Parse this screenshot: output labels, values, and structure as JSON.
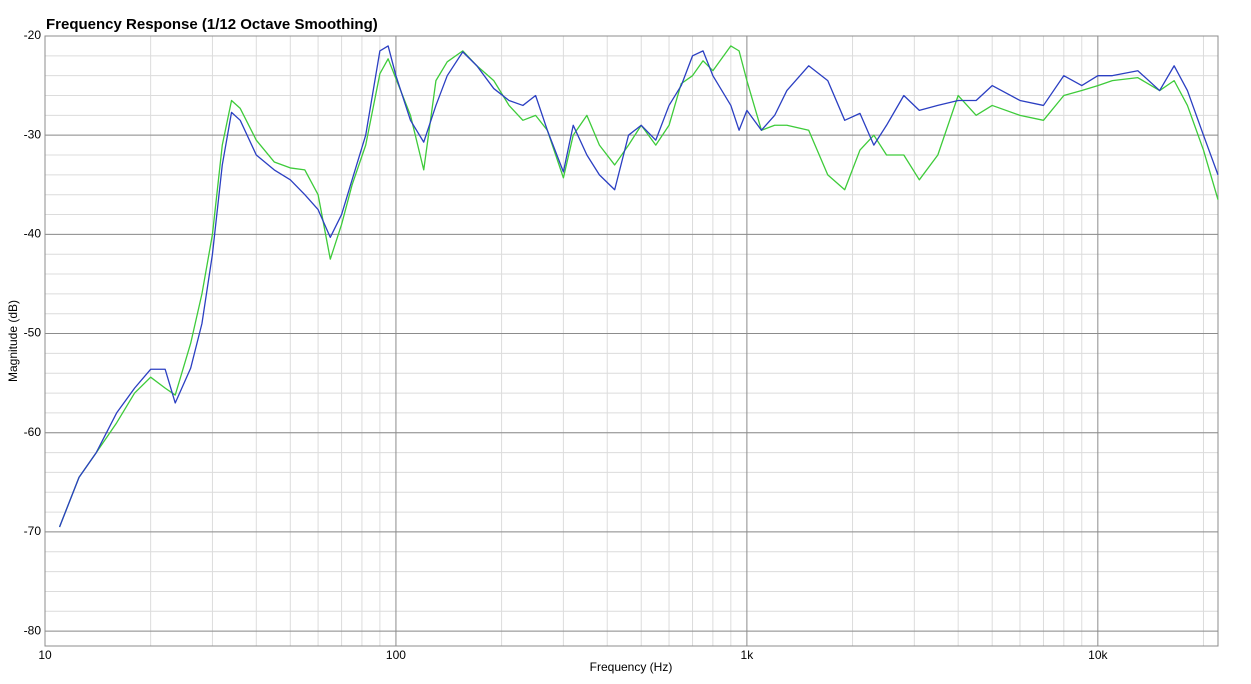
{
  "chart_data": {
    "type": "line",
    "title": "Frequency Response (1/12 Octave Smoothing)",
    "x_label": "Frequency (Hz)",
    "y_label": "Magnitude (dB)",
    "log_x": true,
    "grid": true,
    "minor_grid": true,
    "xlim": [
      10,
      22000
    ],
    "ylim": [
      -81.5,
      -20
    ],
    "xticks": [
      10,
      100,
      {
        "value": 1000,
        "label": "1k"
      },
      {
        "value": 10000,
        "label": "10k"
      }
    ],
    "yticks": [
      -20,
      -30,
      -40,
      -50,
      -60,
      -70,
      -80
    ],
    "x": [
      11,
      12.5,
      14,
      16,
      18,
      20,
      22,
      23.5,
      26,
      28,
      30,
      32,
      34,
      36,
      40,
      45,
      50,
      55,
      60,
      65,
      70,
      75,
      82,
      90,
      95,
      100,
      110,
      120,
      130,
      140,
      155,
      170,
      190,
      210,
      230,
      250,
      270,
      300,
      320,
      350,
      380,
      420,
      460,
      500,
      550,
      600,
      650,
      700,
      750,
      800,
      900,
      950,
      1000,
      1100,
      1200,
      1300,
      1500,
      1700,
      1900,
      2100,
      2300,
      2500,
      2800,
      3100,
      3500,
      4000,
      4500,
      5000,
      6000,
      7000,
      8000,
      9000,
      10000,
      11000,
      13000,
      15000,
      16500,
      18000,
      20000,
      22000
    ],
    "series": [
      {
        "color": "#2b3fc2",
        "values": [
          -69.5,
          -64.5,
          -62,
          -58,
          -55.5,
          -53.6,
          -53.6,
          -57,
          -53.5,
          -49,
          -42,
          -33,
          -27.7,
          -28.5,
          -32,
          -33.5,
          -34.5,
          -36,
          -37.5,
          -40.3,
          -38,
          -34.5,
          -30,
          -21.5,
          -21,
          -24,
          -28.5,
          -30.7,
          -27,
          -24,
          -21.6,
          -23,
          -25.3,
          -26.5,
          -27,
          -26,
          -29.5,
          -33.7,
          -29,
          -32,
          -34,
          -35.5,
          -30,
          -29,
          -30.5,
          -27,
          -25,
          -22,
          -21.5,
          -24,
          -27,
          -29.5,
          -27.5,
          -29.5,
          -28,
          -25.5,
          -23,
          -24.5,
          -28.5,
          -27.8,
          -31,
          -29,
          -26,
          -27.5,
          -27,
          -26.5,
          -26.5,
          -25,
          -26.5,
          -27,
          -24,
          -25,
          -24,
          -24,
          -23.5,
          -25.5,
          -23,
          -25.5,
          -30,
          -34
        ]
      },
      {
        "color": "#3ecb3a",
        "values": [
          -69.5,
          -64.5,
          -62,
          -59,
          -56,
          -54.4,
          -55.5,
          -56.2,
          -51,
          -46,
          -40,
          -31,
          -26.5,
          -27.3,
          -30.5,
          -32.7,
          -33.3,
          -33.5,
          -36,
          -42.5,
          -39,
          -35,
          -31,
          -23.8,
          -22.3,
          -24.3,
          -28,
          -33.5,
          -24.5,
          -22.6,
          -21.5,
          -23,
          -24.5,
          -27,
          -28.5,
          -28,
          -29.5,
          -34.3,
          -30,
          -28,
          -31,
          -33,
          -31,
          -29,
          -31,
          -29,
          -24.8,
          -24,
          -22.5,
          -23.5,
          -21,
          -21.5,
          -24.5,
          -29.5,
          -29,
          -29,
          -29.5,
          -34,
          -35.5,
          -31.5,
          -30,
          -32,
          -32,
          -34.5,
          -32,
          -26,
          -28,
          -27,
          -28,
          -28.5,
          -26,
          -25.5,
          -25,
          -24.5,
          -24.2,
          -25.5,
          -24.5,
          -27,
          -31.5,
          -36.5
        ]
      }
    ]
  }
}
